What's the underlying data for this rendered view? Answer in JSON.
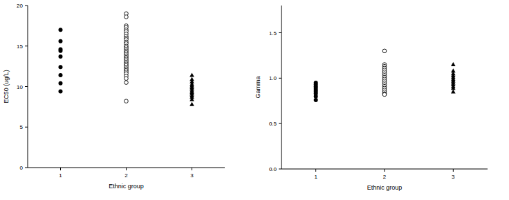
{
  "chart_data": [
    {
      "type": "scatter",
      "x_label": "Ethnic group",
      "y_label": "EC50 (ug/L)",
      "xlim": [
        0.5,
        3.5
      ],
      "xticks": [
        1,
        2,
        3
      ],
      "ylim": [
        0,
        20
      ],
      "yticks": [
        0,
        5,
        10,
        15,
        20
      ],
      "series": [
        {
          "marker": "circle",
          "color": "#000000",
          "x": [
            1,
            1,
            1,
            1,
            1,
            1,
            1,
            1,
            1
          ],
          "values": [
            17.0,
            15.6,
            14.6,
            14.4,
            13.7,
            12.4,
            11.4,
            10.4,
            9.4
          ]
        },
        {
          "marker": "open-circle",
          "color": "#000000",
          "x": [
            2,
            2,
            2,
            2,
            2,
            2,
            2,
            2,
            2,
            2,
            2,
            2,
            2,
            2,
            2,
            2,
            2,
            2,
            2,
            2,
            2,
            2,
            2,
            2,
            2,
            2,
            2,
            2,
            2,
            2,
            2,
            2,
            2,
            2
          ],
          "values": [
            19.0,
            18.6,
            17.5,
            17.3,
            17.0,
            16.8,
            16.5,
            16.2,
            16.0,
            15.8,
            15.5,
            15.3,
            15.0,
            14.8,
            14.6,
            14.4,
            14.2,
            14.0,
            13.8,
            13.6,
            13.4,
            13.2,
            13.0,
            12.8,
            12.6,
            12.4,
            12.2,
            12.0,
            11.8,
            11.6,
            11.3,
            11.0,
            10.5,
            8.2
          ]
        },
        {
          "marker": "triangle",
          "color": "#000000",
          "x": [
            3,
            3,
            3,
            3,
            3,
            3,
            3,
            3,
            3,
            3,
            3,
            3,
            3,
            3
          ],
          "values": [
            11.4,
            10.9,
            10.6,
            10.3,
            10.1,
            9.9,
            9.7,
            9.5,
            9.3,
            9.1,
            8.9,
            8.7,
            8.4,
            7.8
          ]
        }
      ]
    },
    {
      "type": "scatter",
      "x_label": "Ethnic group",
      "y_label": "Gamma",
      "xlim": [
        0.5,
        3.5
      ],
      "xticks": [
        1,
        2,
        3
      ],
      "ylim": [
        0,
        1.8
      ],
      "yticks": [
        {
          "value": 0,
          "label": "0.0"
        },
        {
          "value": 0.5,
          "label": "0.5"
        },
        {
          "value": 1,
          "label": "1.0"
        },
        {
          "value": 1.5,
          "label": "1.5"
        }
      ],
      "series": [
        {
          "marker": "circle",
          "color": "#000000",
          "x": [
            1,
            1,
            1,
            1,
            1,
            1,
            1,
            1,
            1
          ],
          "values": [
            0.95,
            0.93,
            0.91,
            0.89,
            0.87,
            0.85,
            0.83,
            0.8,
            0.76
          ]
        },
        {
          "marker": "open-circle",
          "color": "#000000",
          "x": [
            2,
            2,
            2,
            2,
            2,
            2,
            2,
            2,
            2,
            2,
            2,
            2,
            2,
            2,
            2,
            2,
            2,
            2,
            2
          ],
          "values": [
            1.3,
            1.15,
            1.13,
            1.11,
            1.09,
            1.07,
            1.05,
            1.03,
            1.01,
            0.99,
            0.97,
            0.95,
            0.93,
            0.91,
            0.89,
            0.87,
            0.85,
            0.83,
            0.82
          ]
        },
        {
          "marker": "triangle",
          "color": "#000000",
          "x": [
            3,
            3,
            3,
            3,
            3,
            3,
            3,
            3,
            3,
            3,
            3,
            3
          ],
          "values": [
            1.15,
            1.08,
            1.05,
            1.03,
            1.01,
            0.99,
            0.97,
            0.95,
            0.93,
            0.91,
            0.89,
            0.85
          ]
        }
      ]
    }
  ]
}
